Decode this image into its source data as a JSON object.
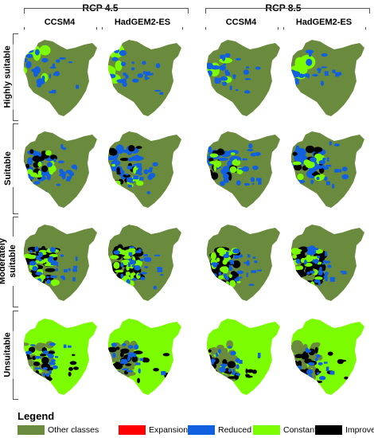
{
  "scenarios": [
    {
      "name": "RCP 4.5"
    },
    {
      "name": "RCP 8.5"
    }
  ],
  "models": [
    {
      "name": "CCSM4"
    },
    {
      "name": "HadGEM2-ES"
    },
    {
      "name": "CCSM4"
    },
    {
      "name": "HadGEM2-ES"
    }
  ],
  "rows": [
    {
      "label": "Highly suitable"
    },
    {
      "label": "Suitable"
    },
    {
      "label": "Moderately suitable"
    },
    {
      "label": "Unsuitable"
    }
  ],
  "legend": {
    "title": "Legend",
    "items": [
      {
        "label": "Other classes",
        "color": "#6a8a3e"
      },
      {
        "label": "Expansion",
        "color": "#ff0000"
      },
      {
        "label": "Reduced",
        "color": "#1060e0"
      },
      {
        "label": "Constant",
        "color": "#7cfc00"
      },
      {
        "label": "Improved",
        "color": "#000000"
      }
    ]
  }
}
